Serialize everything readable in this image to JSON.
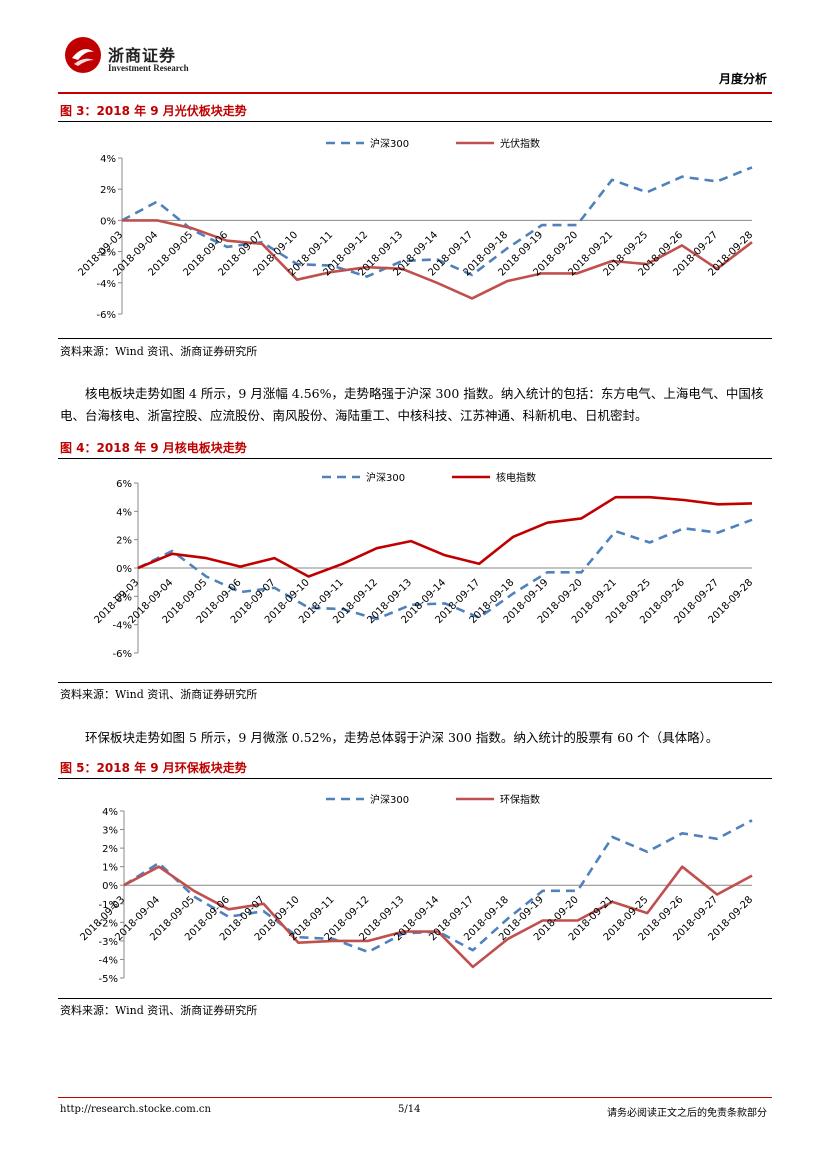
{
  "header": {
    "logo_cn": "浙商证券",
    "logo_en": "Investment Research",
    "report_type": "月度分析"
  },
  "figures": [
    {
      "title": "图 3：2018 年 9 月光伏板块走势",
      "source": "资料来源：Wind 资讯、浙商证券研究所"
    },
    {
      "title": "图 4：2018 年 9 月核电板块走势",
      "source": "资料来源：Wind 资讯、浙商证券研究所"
    },
    {
      "title": "图 5：2018 年 9 月环保板块走势",
      "source": "资料来源：Wind 资讯、浙商证券研究所"
    }
  ],
  "paragraphs": [
    "核电板块走势如图 4 所示，9 月涨幅 4.56%，走势略强于沪深 300 指数。纳入统计的包括：东方电气、上海电气、中国核电、台海核电、浙富控股、应流股份、南风股份、海陆重工、中核科技、江苏神通、科新机电、日机密封。",
    "环保板块走势如图 5 所示，9 月微涨 0.52%，走势总体弱于沪深 300 指数。纳入统计的股票有 60 个（具体略）。"
  ],
  "footer": {
    "url": "http://research.stocke.com.cn",
    "page": "5/14",
    "disclaimer": "请务必阅读正文之后的免责条款部分"
  },
  "chart_data": [
    {
      "type": "line",
      "x": [
        "2018-09-03",
        "2018-09-04",
        "2018-09-05",
        "2018-09-06",
        "2018-09-07",
        "2018-09-10",
        "2018-09-11",
        "2018-09-12",
        "2018-09-13",
        "2018-09-14",
        "2018-09-17",
        "2018-09-18",
        "2018-09-19",
        "2018-09-20",
        "2018-09-21",
        "2018-09-25",
        "2018-09-26",
        "2018-09-27",
        "2018-09-28"
      ],
      "series": [
        {
          "name": "沪深300",
          "color": "#4f81bd",
          "dash": true,
          "values": [
            0,
            1.2,
            -0.6,
            -1.7,
            -1.4,
            -2.8,
            -2.9,
            -3.6,
            -2.6,
            -2.5,
            -3.5,
            -1.8,
            -0.3,
            -0.3,
            2.6,
            1.8,
            2.8,
            2.5,
            3.4
          ]
        },
        {
          "name": "光伏指数",
          "color": "#c0504d",
          "dash": false,
          "values": [
            0,
            0,
            -0.5,
            -1.3,
            -1.5,
            -3.8,
            -3.3,
            -3.0,
            -3.1,
            -4.0,
            -5.0,
            -3.9,
            -3.4,
            -3.4,
            -2.6,
            -2.8,
            -1.6,
            -3.1,
            -1.4
          ]
        }
      ],
      "ylim": [
        -6,
        4
      ],
      "yticks": [
        4,
        2,
        0,
        -2,
        -4,
        -6
      ],
      "ytick_labels": [
        "4%",
        "2%",
        "0%",
        "-2%",
        "-4%",
        "-6%"
      ],
      "legend": "top-center"
    },
    {
      "type": "line",
      "x": [
        "2018-09-03",
        "2018-09-04",
        "2018-09-05",
        "2018-09-06",
        "2018-09-07",
        "2018-09-10",
        "2018-09-11",
        "2018-09-12",
        "2018-09-13",
        "2018-09-14",
        "2018-09-17",
        "2018-09-18",
        "2018-09-19",
        "2018-09-20",
        "2018-09-21",
        "2018-09-25",
        "2018-09-26",
        "2018-09-27",
        "2018-09-28"
      ],
      "series": [
        {
          "name": "沪深300",
          "color": "#4f81bd",
          "dash": true,
          "values": [
            0,
            1.2,
            -0.6,
            -1.7,
            -1.4,
            -2.8,
            -2.9,
            -3.6,
            -2.6,
            -2.5,
            -3.5,
            -1.8,
            -0.3,
            -0.3,
            2.6,
            1.8,
            2.8,
            2.5,
            3.4
          ]
        },
        {
          "name": "核电指数",
          "color": "#c00000",
          "dash": false,
          "values": [
            0,
            1.0,
            0.7,
            0.1,
            0.7,
            -0.6,
            0.3,
            1.4,
            1.9,
            0.9,
            0.3,
            2.2,
            3.2,
            3.5,
            5.0,
            5.0,
            4.8,
            4.5,
            4.56
          ]
        }
      ],
      "ylim": [
        -6,
        6
      ],
      "yticks": [
        6,
        4,
        2,
        0,
        -2,
        -4,
        -6
      ],
      "ytick_labels": [
        "6%",
        "4%",
        "2%",
        "0%",
        "-2%",
        "-4%",
        "-6%"
      ],
      "legend": "top-center"
    },
    {
      "type": "line",
      "x": [
        "2018-09-03",
        "2018-09-04",
        "2018-09-05",
        "2018-09-06",
        "2018-09-07",
        "2018-09-10",
        "2018-09-11",
        "2018-09-12",
        "2018-09-13",
        "2018-09-14",
        "2018-09-17",
        "2018-09-18",
        "2018-09-19",
        "2018-09-20",
        "2018-09-21",
        "2018-09-25",
        "2018-09-26",
        "2018-09-27",
        "2018-09-28"
      ],
      "series": [
        {
          "name": "沪深300",
          "color": "#4f81bd",
          "dash": true,
          "values": [
            0,
            1.2,
            -0.6,
            -1.7,
            -1.4,
            -2.8,
            -2.9,
            -3.6,
            -2.6,
            -2.5,
            -3.5,
            -1.8,
            -0.3,
            -0.3,
            2.6,
            1.8,
            2.8,
            2.5,
            3.5
          ]
        },
        {
          "name": "环保指数",
          "color": "#c0504d",
          "dash": false,
          "values": [
            0,
            1.0,
            -0.3,
            -1.3,
            -1.0,
            -3.1,
            -3.0,
            -3.0,
            -2.5,
            -2.5,
            -4.4,
            -2.9,
            -1.9,
            -1.9,
            -0.9,
            -1.5,
            1.0,
            -0.5,
            0.52
          ]
        }
      ],
      "ylim": [
        -5,
        4
      ],
      "yticks": [
        4,
        3,
        2,
        1,
        0,
        -1,
        -2,
        -3,
        -4,
        -5
      ],
      "ytick_labels": [
        "4%",
        "3%",
        "2%",
        "1%",
        "0%",
        "-1%",
        "-2%",
        "-3%",
        "-4%",
        "-5%"
      ],
      "legend": "top-center"
    }
  ]
}
